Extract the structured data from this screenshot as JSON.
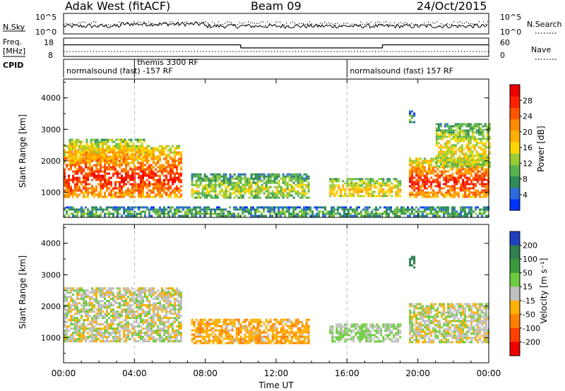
{
  "header": {
    "station": "Adak West (fitACF)",
    "beam": "Beam 09",
    "date": "24/Oct/2015"
  },
  "status_strip": {
    "left_nsky_label": "N.Sky",
    "left_nsky_ticks": [
      "10^5",
      "10^0"
    ],
    "right_nsearch_label": "N.Search",
    "right_nsearch_ticks": [
      "10^5",
      "10^0"
    ],
    "freq_label": "Freq.",
    "freq_unit": "[MHz]",
    "freq_ticks": [
      "18",
      "8"
    ],
    "nave_label": "Nave",
    "nave_ticks": [
      "60",
      "0"
    ],
    "cpid_label": "CPID",
    "cpid_segments": [
      {
        "label": "normalsound (fast) -157 RF",
        "start_hour": 0.0,
        "end_hour": 16.0
      },
      {
        "label": "themis 3300 RF",
        "start_hour": 4.0,
        "end_hour": 16.0
      },
      {
        "label": "normalsound (fast) 157 RF",
        "start_hour": 16.0,
        "end_hour": 24.0
      }
    ],
    "freq_steps": [
      {
        "start_hour": 0.0,
        "end_hour": 10.0,
        "mhz": 15.5
      },
      {
        "start_hour": 10.0,
        "end_hour": 18.0,
        "mhz": 13.5
      },
      {
        "start_hour": 18.0,
        "end_hour": 24.0,
        "mhz": 15.5
      }
    ]
  },
  "x_axis": {
    "label": "Time UT",
    "ticks": [
      "00:00",
      "04:00",
      "08:00",
      "12:00",
      "16:00",
      "20:00",
      "00:00"
    ],
    "range_hours": [
      0,
      24
    ]
  },
  "power_panel": {
    "ylabel": "Slant Range [km]",
    "yticks": [
      "1000",
      "2000",
      "3000",
      "4000"
    ],
    "colorbar_label": "Power [dB]",
    "colorbar_ticks": [
      "4",
      "8",
      "12",
      "16",
      "20",
      "24",
      "28"
    ],
    "colorbar_colors": [
      "#0033ff",
      "#2b6bd9",
      "#2e8b57",
      "#59b34d",
      "#9acd32",
      "#ffd700",
      "#ffb000",
      "#ff8c00",
      "#ff5500",
      "#ff2000",
      "#ee0000"
    ]
  },
  "velocity_panel": {
    "ylabel": "Slant Range [km]",
    "yticks": [
      "1000",
      "2000",
      "3000",
      "4000"
    ],
    "colorbar_label": "Velocity [m s⁻¹]",
    "colorbar_ticks": [
      "200",
      "100",
      "50",
      "15",
      "-15",
      "-50",
      "-100",
      "-200"
    ],
    "colorbar_colors": [
      "#2040c0",
      "#2f7f4f",
      "#3a9a3a",
      "#6dcc3c",
      "#c0c0c0",
      "#ffb000",
      "#ff8000",
      "#ff4000",
      "#ee0000"
    ]
  },
  "chart_data": {
    "type": "heatmap",
    "title": "Adak West (fitACF) Beam 09 24/Oct/2015",
    "xlabel": "Time UT",
    "ylabel": "Slant Range [km]",
    "xlim_hours": [
      0,
      24
    ],
    "ylim_km": [
      200,
      4600
    ],
    "dashed_markers_hours": [
      4,
      16
    ],
    "power_regions": [
      {
        "name": "upper band",
        "start_hour": 0.3,
        "end_hour": 4.6,
        "range_km": [
          1900,
          2700
        ],
        "typical_db": 20
      },
      {
        "name": "main band",
        "start_hour": 0.0,
        "end_hour": 6.6,
        "range_km": [
          850,
          2500
        ],
        "typical_db": 26
      },
      {
        "name": "mid-day patch",
        "start_hour": 7.2,
        "end_hour": 13.8,
        "range_km": [
          800,
          1600
        ],
        "typical_db": 14
      },
      {
        "name": "afternoon patch",
        "start_hour": 15.0,
        "end_hour": 19.0,
        "range_km": [
          850,
          1450
        ],
        "typical_db": 18
      },
      {
        "name": "evening band",
        "start_hour": 19.5,
        "end_hour": 24.0,
        "range_km": [
          850,
          2100
        ],
        "typical_db": 26
      },
      {
        "name": "evening upper band",
        "start_hour": 21.0,
        "end_hour": 24.0,
        "range_km": [
          1800,
          3200
        ],
        "typical_db": 16
      },
      {
        "name": "isolated echo",
        "start_hour": 19.5,
        "end_hour": 19.8,
        "range_km": [
          3200,
          3600
        ],
        "typical_db": 10
      },
      {
        "name": "near-range clutter",
        "start_hour": 0.0,
        "end_hour": 24.0,
        "range_km": [
          250,
          550
        ],
        "typical_db": 10
      }
    ],
    "velocity_regions": [
      {
        "name": "ground scatter band",
        "start_hour": 0.0,
        "end_hour": 6.6,
        "range_km": [
          850,
          2600
        ],
        "typical_ms": 0
      },
      {
        "name": "mid-day flow",
        "start_hour": 7.2,
        "end_hour": 13.8,
        "range_km": [
          800,
          1600
        ],
        "typical_ms": -40
      },
      {
        "name": "afternoon mixed",
        "start_hour": 15.0,
        "end_hour": 19.0,
        "range_km": [
          850,
          1450
        ],
        "typical_ms": 20
      },
      {
        "name": "evening ground scatter",
        "start_hour": 19.5,
        "end_hour": 24.0,
        "range_km": [
          850,
          2100
        ],
        "typical_ms": 0
      },
      {
        "name": "isolated echo",
        "start_hour": 19.5,
        "end_hour": 19.8,
        "range_km": [
          3200,
          3600
        ],
        "typical_ms": 150
      }
    ]
  }
}
